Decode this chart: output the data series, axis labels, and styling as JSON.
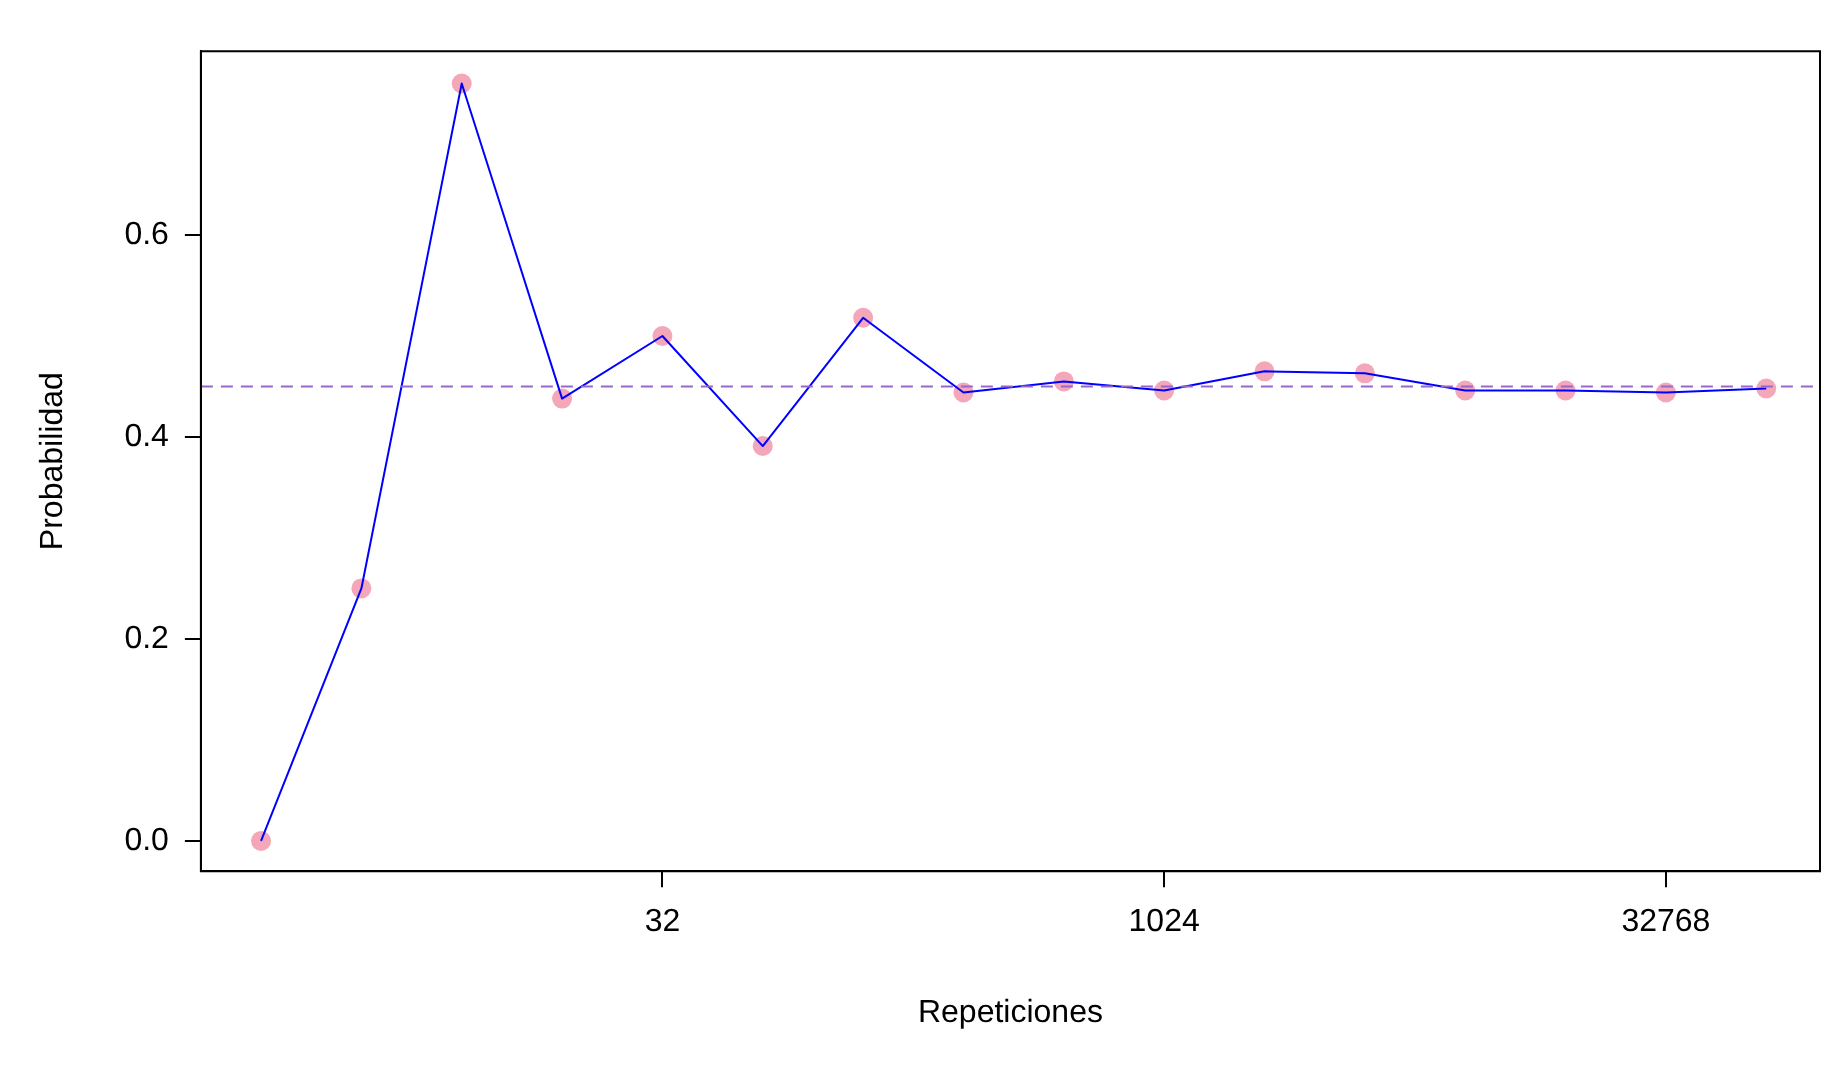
{
  "chart_data": {
    "type": "line",
    "xlabel": "Repeticiones",
    "ylabel": "Probabilidad",
    "x": [
      2,
      4,
      8,
      16,
      32,
      64,
      128,
      256,
      512,
      1024,
      2048,
      4096,
      8192,
      16384,
      32768,
      65536
    ],
    "series": [
      {
        "type": "line",
        "color": "#0000ff",
        "marker": "none",
        "values": [
          0,
          0.25,
          0.75,
          0.438,
          0.5,
          0.391,
          0.518,
          0.444,
          0.455,
          0.446,
          0.465,
          0.463,
          0.446,
          0.446,
          0.444,
          0.448
        ]
      },
      {
        "type": "scatter",
        "color": "#f4a7b9",
        "marker": "circle",
        "values": [
          0,
          0.25,
          0.75,
          0.438,
          0.5,
          0.391,
          0.518,
          0.444,
          0.455,
          0.446,
          0.465,
          0.463,
          0.446,
          0.446,
          0.444,
          0.448
        ]
      }
    ],
    "log": "x",
    "xlim": [
      1.32,
      95000
    ],
    "xticks": [
      32,
      1024,
      32768
    ],
    "ylim": [
      -0.03,
      0.782
    ],
    "yticks": [
      {
        "value": 0,
        "label": "0.0"
      },
      {
        "value": 0.2,
        "label": "0.2"
      },
      {
        "value": 0.4,
        "label": "0.4"
      },
      {
        "value": 0.6,
        "label": "0.6"
      }
    ],
    "ref_lines": [
      {
        "axis": "y",
        "value": 0.45,
        "color": "#9966cc",
        "line_style": "dashed"
      }
    ],
    "grid": false,
    "legend": false
  }
}
